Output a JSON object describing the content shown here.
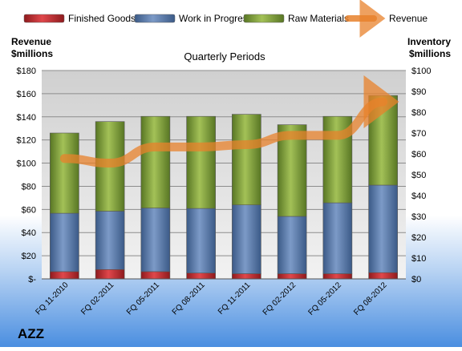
{
  "chart_data": {
    "type": "bar",
    "company": "AZZ",
    "subtitle": "Quarterly Periods",
    "left_axis_title": [
      "Revenue",
      "$millions"
    ],
    "right_axis_title": [
      "Inventory",
      "$millions"
    ],
    "categories": [
      "FQ 11-2010",
      "FQ 02-2011",
      "FQ 05-2011",
      "FQ 08-2011",
      "FQ 11-2011",
      "FQ 02-2012",
      "FQ 05-2012",
      "FQ 08-2012"
    ],
    "left_axis": {
      "min": 0,
      "max": 180,
      "step": 20,
      "ticks": [
        "$-",
        "$20",
        "$40",
        "$60",
        "$80",
        "$100",
        "$120",
        "$140",
        "$160",
        "$180"
      ]
    },
    "right_axis": {
      "min": 0,
      "max": 100,
      "step": 10,
      "ticks": [
        "$0",
        "$10",
        "$20",
        "$30",
        "$40",
        "$50",
        "$60",
        "$70",
        "$80",
        "$90",
        "$100"
      ]
    },
    "inventory_series": [
      {
        "name": "Finished Goods",
        "axis": "right",
        "color": "#c0282c",
        "values": [
          3.5,
          4.5,
          3.5,
          2.8,
          2.5,
          2.5,
          2.5,
          3.0
        ]
      },
      {
        "name": "Work in Progress",
        "axis": "right",
        "color": "#4f6f9e",
        "values": [
          28.0,
          28.0,
          30.5,
          31.0,
          33.0,
          27.5,
          34.0,
          42.0
        ]
      },
      {
        "name": "Raw Materials",
        "axis": "right",
        "color": "#6f8f30",
        "values": [
          38.5,
          43.0,
          44.0,
          44.2,
          43.5,
          44.0,
          41.5,
          43.0
        ]
      }
    ],
    "line_series": [
      {
        "name": "Revenue",
        "axis": "left",
        "color": "#e8812b",
        "values": [
          104,
          100,
          114,
          114,
          116,
          124,
          124,
          153
        ]
      }
    ],
    "legend": [
      "Finished Goods",
      "Work in Progress",
      "Raw Materials",
      "Revenue"
    ],
    "legend_position": "top",
    "grid": true,
    "colors": {
      "background_top": "#ffffff",
      "background_bottom": "#4a8ee0",
      "plot_bg": "#d4d4d4"
    }
  }
}
